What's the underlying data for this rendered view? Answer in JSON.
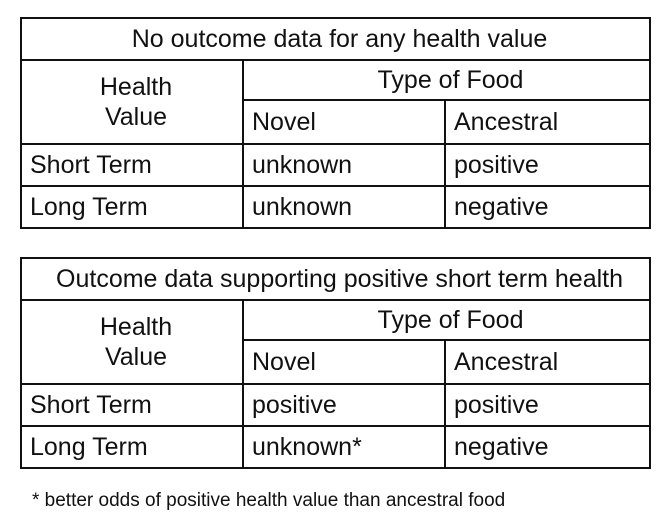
{
  "tables": [
    {
      "title": "No outcome data for any health value",
      "health_label_line1": "Health",
      "health_label_line2": "Value",
      "food_type_header": "Type of Food",
      "columns": [
        "Novel",
        "Ancestral"
      ],
      "rows": [
        {
          "label": "Short Term",
          "novel": "unknown",
          "ancestral": "positive"
        },
        {
          "label": "Long Term",
          "novel": "unknown",
          "ancestral": "negative"
        }
      ]
    },
    {
      "title": "Outcome data supporting positive short term health",
      "health_label_line1": "Health",
      "health_label_line2": "Value",
      "food_type_header": "Type of Food",
      "columns": [
        "Novel",
        "Ancestral"
      ],
      "rows": [
        {
          "label": "Short Term",
          "novel": "positive",
          "ancestral": "positive"
        },
        {
          "label": "Long Term",
          "novel": "unknown*",
          "ancestral": "negative"
        }
      ]
    }
  ],
  "footnote": "* better odds of positive health value than ancestral food"
}
